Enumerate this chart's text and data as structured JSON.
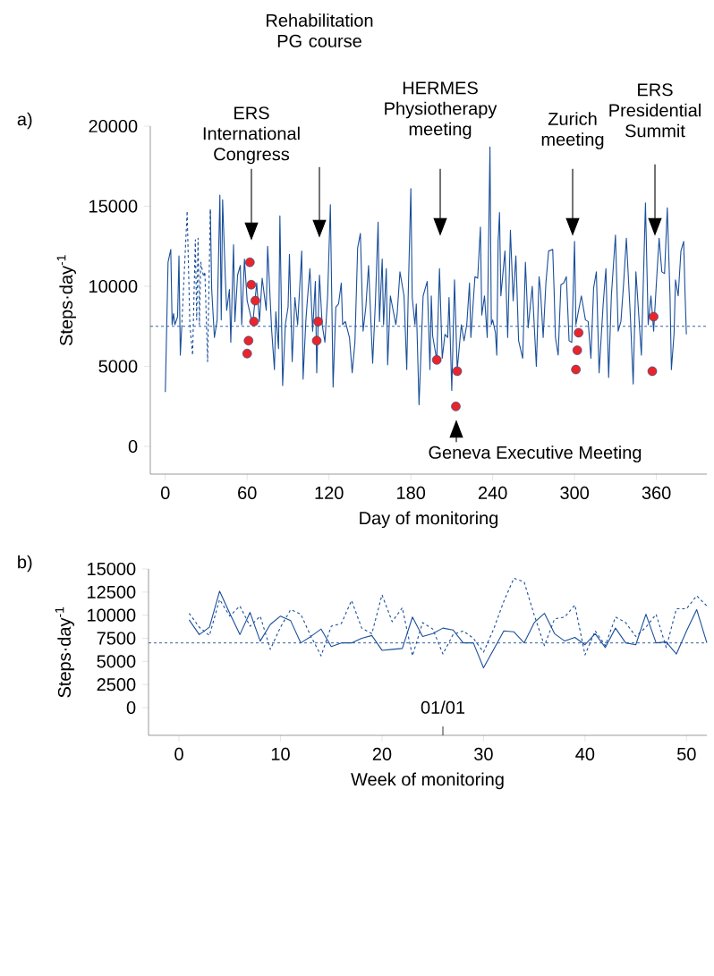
{
  "chart_data": [
    {
      "type": "line",
      "title": "a)",
      "xlabel": "Day of monitoring",
      "ylabel": "Steps·day$^{-1}$",
      "xlim": [
        -11,
        397
      ],
      "ylim": [
        -1730,
        20000
      ],
      "xticks": [
        0,
        60,
        120,
        180,
        240,
        300,
        360
      ],
      "yticks": [
        0,
        5000,
        10000,
        15000,
        20000
      ],
      "grid": false,
      "marker": "none",
      "series": [
        {
          "color": "#1a4f9a",
          "line_style": "solid",
          "x": [
            0,
            2,
            4,
            5,
            6,
            7,
            9,
            10,
            11,
            12,
            22,
            33,
            34,
            36,
            38,
            40,
            41,
            42,
            44,
            45,
            47,
            48,
            50,
            51,
            53,
            55,
            56,
            58,
            60,
            64,
            67,
            69,
            71,
            74,
            75,
            78,
            80,
            81,
            83,
            84,
            86,
            88,
            90,
            91,
            93,
            95,
            97,
            100,
            101,
            103,
            104,
            106,
            108,
            110,
            111,
            113,
            115,
            117,
            119,
            121,
            123,
            125,
            127,
            129,
            130,
            132,
            135,
            137,
            139,
            141,
            143,
            145,
            147,
            149,
            152,
            154,
            156,
            157,
            159,
            160,
            162,
            163,
            165,
            169,
            170,
            172,
            175,
            177,
            178,
            180,
            181,
            183,
            184,
            186,
            189,
            192,
            194,
            195,
            196,
            199,
            201,
            203,
            205,
            207,
            208,
            210,
            212,
            214,
            217,
            219,
            221,
            223,
            224,
            227,
            229,
            231,
            232,
            234,
            236,
            238,
            239,
            240,
            242,
            243,
            244,
            245,
            246,
            249,
            251,
            253,
            255,
            257,
            259,
            262,
            264,
            266,
            269,
            272,
            274,
            275,
            277,
            279,
            281,
            284,
            285,
            286,
            288,
            290,
            292,
            294,
            296,
            298,
            300,
            301,
            305,
            308,
            310,
            312,
            314,
            316,
            318,
            321,
            323,
            325,
            327,
            330,
            332,
            334,
            336,
            338,
            341,
            343,
            345,
            347,
            349,
            352,
            354,
            356,
            358,
            360,
            362,
            364,
            366,
            368,
            370,
            371,
            373,
            374,
            376,
            378,
            380,
            381,
            382
          ],
          "values": [
            3400,
            11500,
            12300,
            7600,
            8300,
            7600,
            8100,
            11900,
            5700,
            7400,
            null,
            14800,
            9800,
            6800,
            7900,
            15700,
            7900,
            15400,
            10500,
            8500,
            9800,
            6500,
            12600,
            7800,
            10700,
            11300,
            7600,
            11700,
            9100,
            7600,
            10200,
            7800,
            10500,
            8500,
            12500,
            7200,
            4800,
            8400,
            6100,
            14400,
            3800,
            7600,
            8700,
            12000,
            5300,
            9300,
            7600,
            12200,
            4200,
            7800,
            9000,
            11100,
            7200,
            10300,
            4600,
            10700,
            7600,
            6500,
            9400,
            15100,
            3700,
            8700,
            8900,
            10200,
            7600,
            7800,
            6800,
            4600,
            6500,
            12400,
            13300,
            7200,
            8700,
            11300,
            5200,
            9000,
            14000,
            7800,
            11700,
            7600,
            11100,
            5100,
            9400,
            7600,
            8300,
            10900,
            9400,
            4800,
            9200,
            16100,
            9300,
            7600,
            8900,
            2600,
            9400,
            10300,
            4800,
            9400,
            6900,
            5400,
            11100,
            5500,
            7000,
            6800,
            9300,
            3500,
            10400,
            4800,
            7600,
            6600,
            7600,
            10200,
            6800,
            10600,
            10500,
            13700,
            8200,
            9400,
            6800,
            18700,
            7600,
            7900,
            7100,
            5700,
            12800,
            14600,
            9400,
            12200,
            6800,
            13500,
            9100,
            11900,
            6600,
            5500,
            11500,
            7400,
            10000,
            5000,
            10600,
            9800,
            6800,
            10200,
            12200,
            12300,
            9800,
            6800,
            5700,
            10100,
            10200,
            10600,
            6600,
            6500,
            12800,
            7600,
            9400,
            7900,
            7800,
            5500,
            9900,
            10900,
            4600,
            8900,
            11100,
            4300,
            9400,
            13200,
            7200,
            7800,
            10200,
            13000,
            8000,
            3900,
            10900,
            8300,
            5700,
            15200,
            7600,
            9400,
            7200,
            10200,
            13000,
            10900,
            10800,
            14900,
            9400,
            4800,
            7100,
            10400,
            9400,
            12200,
            12800,
            9600,
            7000
          ]
        },
        {
          "color": "#1a4f9a",
          "line_style": "dashed",
          "x": [
            12,
            16,
            18,
            20,
            22,
            23,
            24,
            25,
            26,
            28,
            29,
            31,
            33
          ],
          "values": [
            7400,
            14700,
            7600,
            5700,
            12900,
            7900,
            13000,
            7600,
            11500,
            10600,
            10900,
            5300,
            14800
          ]
        },
        {
          "type": "scatter",
          "marker": "circle",
          "color": "#e8262a",
          "x": [
            60,
            61,
            62,
            63,
            65,
            66,
            111,
            112,
            199,
            213,
            214,
            301,
            302,
            303,
            357,
            358
          ],
          "values": [
            5800,
            6600,
            11500,
            10100,
            7800,
            9100,
            6600,
            7800,
            5400,
            2500,
            4700,
            4800,
            6000,
            7100,
            4700,
            8100
          ]
        }
      ],
      "ref_lines": [
        {
          "axis": "y",
          "value": 7500,
          "line_style": "dashed",
          "color": "#1a4f9a"
        }
      ],
      "annotations": [
        "ERS International Congress",
        "Rehabilitation PG course",
        "HERMES Physiotherapy meeting",
        "Zurich meeting",
        "ERS Presidential Summit",
        "Geneva Executive Meeting"
      ]
    },
    {
      "type": "line",
      "title": "b)",
      "xlabel": "Week of monitoring",
      "ylabel": "Steps·day$^{-1}$",
      "xlim": [
        -3,
        52
      ],
      "ylim": [
        -3000,
        15000
      ],
      "xticks": [
        0,
        10,
        20,
        30,
        40,
        50
      ],
      "yticks": [
        0,
        2500,
        5000,
        7500,
        10000,
        12500,
        15000
      ],
      "grid": false,
      "marker": "none",
      "x": [
        1,
        2,
        3,
        4,
        5,
        6,
        7,
        8,
        9,
        10,
        11,
        12,
        13,
        14,
        15,
        16,
        17,
        18,
        19,
        20,
        21,
        22,
        23,
        24,
        25,
        26,
        27,
        28,
        29,
        30,
        31,
        32,
        33,
        34,
        35,
        36,
        37,
        38,
        39,
        40,
        41,
        42,
        43,
        44,
        45,
        46,
        47,
        48,
        49,
        50,
        51,
        52
      ],
      "series": [
        {
          "color": "#1a4f9a",
          "line_style": "solid",
          "values": [
            9500,
            7900,
            8700,
            12600,
            10200,
            7900,
            10300,
            7200,
            9000,
            9900,
            9400,
            7000,
            7700,
            8500,
            6600,
            7000,
            7000,
            7500,
            7800,
            6200,
            6300,
            6400,
            9800,
            7700,
            8000,
            8600,
            8400,
            7000,
            7000,
            4300,
            6300,
            8300,
            8200,
            7000,
            9200,
            10200,
            8000,
            7200,
            7600,
            6800,
            8000,
            6500,
            8600,
            7000,
            6800,
            10100,
            7000,
            7100,
            5800,
            8300,
            10600,
            7000
          ]
        },
        {
          "color": "#1a4f9a",
          "line_style": "dashed",
          "values": [
            10200,
            8700,
            7800,
            11700,
            9900,
            11000,
            8800,
            9900,
            6300,
            8700,
            10600,
            10100,
            7700,
            5600,
            8800,
            9100,
            11600,
            8600,
            8000,
            12200,
            9300,
            10800,
            5600,
            9200,
            8500,
            5800,
            7900,
            8300,
            7500,
            6000,
            8500,
            11500,
            14000,
            13600,
            10000,
            6700,
            9600,
            9800,
            11100,
            5700,
            8300,
            6700,
            9800,
            9200,
            7700,
            8700,
            10100,
            6500,
            10700,
            10700,
            12100,
            11000
          ]
        }
      ],
      "ref_lines": [
        {
          "axis": "y",
          "value": 7000,
          "line_style": "dashed",
          "color": "#1a4f9a"
        }
      ],
      "annotations": [
        "01/01"
      ]
    }
  ]
}
